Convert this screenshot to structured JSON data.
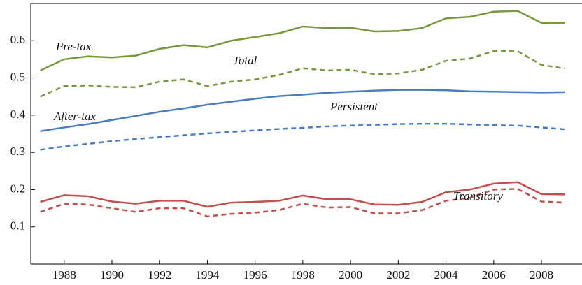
{
  "chart_data": {
    "type": "line",
    "x": [
      1987,
      1988,
      1989,
      1990,
      1991,
      1992,
      1993,
      1994,
      1995,
      1996,
      1997,
      1998,
      1999,
      2000,
      2001,
      2002,
      2003,
      2004,
      2005,
      2006,
      2007,
      2008,
      2009
    ],
    "series": [
      {
        "color": "#77993d",
        "dashed": false,
        "values": [
          0.52,
          0.55,
          0.558,
          0.555,
          0.56,
          0.578,
          0.588,
          0.582,
          0.6,
          0.61,
          0.62,
          0.638,
          0.634,
          0.635,
          0.625,
          0.626,
          0.634,
          0.66,
          0.664,
          0.678,
          0.68,
          0.648,
          0.647
        ]
      },
      {
        "color": "#77993d",
        "dashed": true,
        "values": [
          0.45,
          0.478,
          0.48,
          0.476,
          0.475,
          0.49,
          0.496,
          0.478,
          0.49,
          0.496,
          0.508,
          0.526,
          0.52,
          0.522,
          0.51,
          0.512,
          0.522,
          0.546,
          0.552,
          0.572,
          0.572,
          0.535,
          0.525
        ]
      },
      {
        "color": "#4a7cc0",
        "dashed": false,
        "values": [
          0.357,
          0.367,
          0.376,
          0.387,
          0.398,
          0.409,
          0.418,
          0.428,
          0.436,
          0.444,
          0.451,
          0.455,
          0.46,
          0.463,
          0.466,
          0.468,
          0.468,
          0.467,
          0.464,
          0.463,
          0.462,
          0.461,
          0.462
        ]
      },
      {
        "color": "#4a7cc0",
        "dashed": true,
        "values": [
          0.307,
          0.316,
          0.323,
          0.33,
          0.336,
          0.341,
          0.346,
          0.351,
          0.355,
          0.359,
          0.363,
          0.366,
          0.37,
          0.372,
          0.374,
          0.376,
          0.377,
          0.377,
          0.375,
          0.373,
          0.372,
          0.367,
          0.362
        ]
      },
      {
        "color": "#c0504d",
        "dashed": false,
        "values": [
          0.167,
          0.185,
          0.182,
          0.168,
          0.162,
          0.17,
          0.17,
          0.154,
          0.165,
          0.167,
          0.17,
          0.184,
          0.174,
          0.174,
          0.16,
          0.159,
          0.167,
          0.193,
          0.2,
          0.216,
          0.22,
          0.188,
          0.187
        ]
      },
      {
        "color": "#c0504d",
        "dashed": true,
        "values": [
          0.14,
          0.162,
          0.16,
          0.15,
          0.14,
          0.15,
          0.15,
          0.128,
          0.135,
          0.138,
          0.145,
          0.162,
          0.152,
          0.153,
          0.136,
          0.136,
          0.145,
          0.17,
          0.178,
          0.2,
          0.202,
          0.168,
          0.165
        ]
      }
    ],
    "annotations": [
      "Pre-tax",
      "Total",
      "After-tax",
      "Persistent",
      "Transitory"
    ],
    "xlim": [
      1986.6,
      2009.7
    ],
    "ylim": [
      0,
      0.7
    ],
    "xticks": [
      1988,
      1990,
      1992,
      1994,
      1996,
      1998,
      2000,
      2002,
      2004,
      2006,
      2008
    ],
    "yticks": [
      0.1,
      0.2,
      0.3,
      0.4,
      0.5,
      0.6
    ],
    "grid": false
  }
}
